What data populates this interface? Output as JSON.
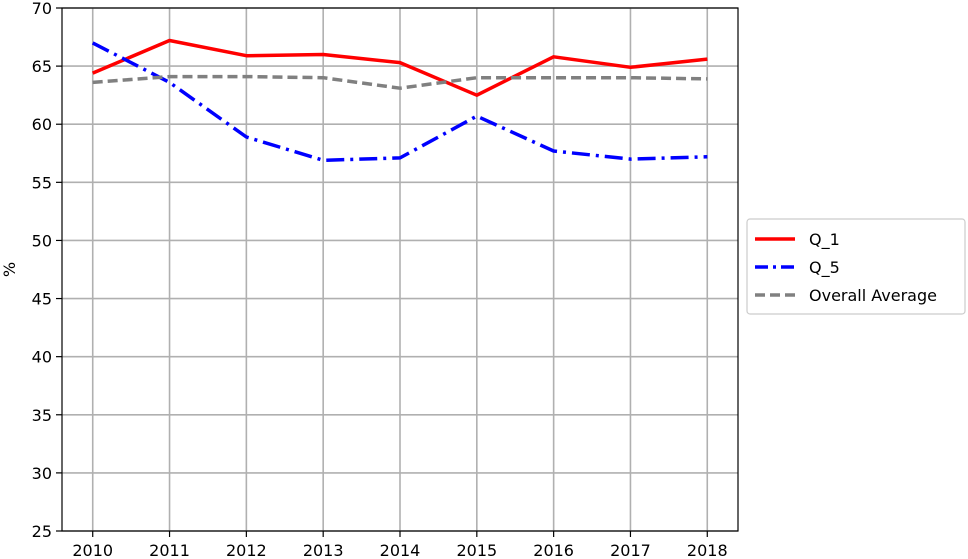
{
  "chart_data": {
    "type": "line",
    "title": "",
    "xlabel": "",
    "ylabel": "%",
    "x": [
      "2010",
      "2011",
      "2012",
      "2013",
      "2014",
      "2015",
      "2016",
      "2017",
      "2018"
    ],
    "xlim": [
      2009.6,
      2018.4
    ],
    "ylim": [
      25,
      70
    ],
    "yticks": [
      25,
      30,
      35,
      40,
      45,
      50,
      55,
      60,
      65,
      70
    ],
    "grid": true,
    "legend_position": "outside-right",
    "series": [
      {
        "name": "Q_1",
        "color": "#ff0000",
        "style": "solid",
        "values": [
          64.4,
          67.2,
          65.9,
          66.0,
          65.3,
          62.5,
          65.8,
          64.9,
          65.6
        ]
      },
      {
        "name": "Q_5",
        "color": "#0000ff",
        "style": "dashdot",
        "values": [
          67.0,
          63.6,
          58.9,
          56.9,
          57.1,
          60.7,
          57.7,
          57.0,
          57.2
        ]
      },
      {
        "name": "Overall Average",
        "color": "#808080",
        "style": "dashed",
        "values": [
          63.6,
          64.1,
          64.1,
          64.0,
          63.1,
          64.0,
          64.0,
          64.0,
          63.9
        ]
      }
    ]
  }
}
